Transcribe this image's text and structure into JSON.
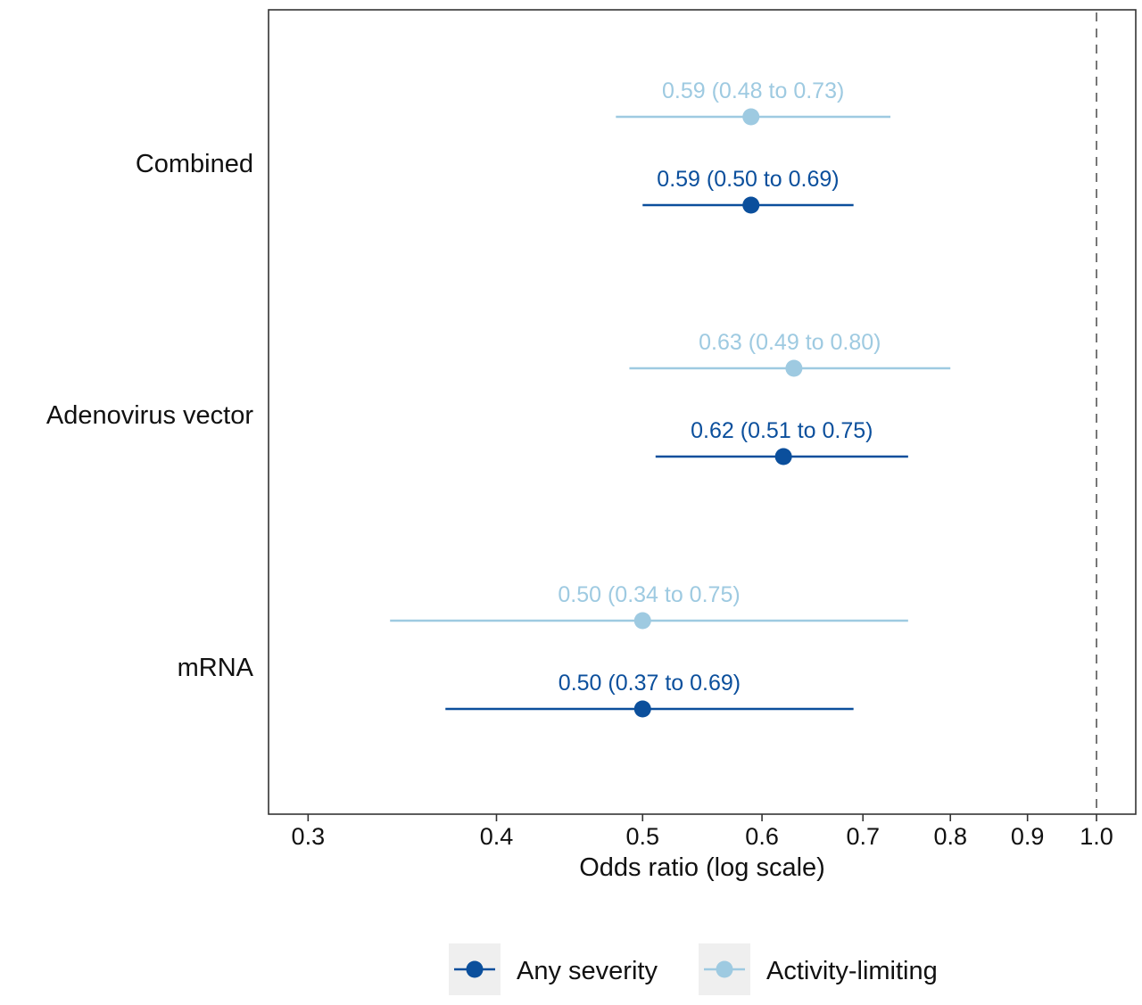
{
  "chart_data": {
    "type": "forest",
    "xlabel": "Odds ratio (log scale)",
    "xscale": "log",
    "xlim": [
      0.282,
      1.062
    ],
    "xticks": [
      0.3,
      0.4,
      0.5,
      0.6,
      0.7,
      0.8,
      0.9,
      1.0
    ],
    "xtick_labels": [
      "0.3",
      "0.4",
      "0.5",
      "0.6",
      "0.7",
      "0.8",
      "0.9",
      "1.0"
    ],
    "reference_line": 1.0,
    "grid": false,
    "legend_position": "bottom",
    "categories": [
      "Combined",
      "Adenovirus vector",
      "mRNA"
    ],
    "series": [
      {
        "name": "Any severity",
        "color": "#0b4f9c",
        "points": [
          {
            "estimate": 0.59,
            "lower": 0.5,
            "upper": 0.69,
            "label": "0.59 (0.50 to 0.69)"
          },
          {
            "estimate": 0.62,
            "lower": 0.51,
            "upper": 0.75,
            "label": "0.62 (0.51 to 0.75)"
          },
          {
            "estimate": 0.5,
            "lower": 0.37,
            "upper": 0.69,
            "label": "0.50 (0.37 to 0.69)"
          }
        ]
      },
      {
        "name": "Activity-limiting",
        "color": "#9ecae1",
        "points": [
          {
            "estimate": 0.59,
            "lower": 0.48,
            "upper": 0.73,
            "label": "0.59 (0.48 to 0.73)"
          },
          {
            "estimate": 0.63,
            "lower": 0.49,
            "upper": 0.8,
            "label": "0.63 (0.49 to 0.80)"
          },
          {
            "estimate": 0.5,
            "lower": 0.34,
            "upper": 0.75,
            "label": "0.50 (0.34 to 0.75)"
          }
        ]
      }
    ]
  }
}
